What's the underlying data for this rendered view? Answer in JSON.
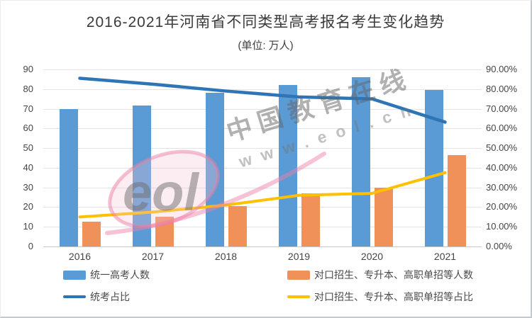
{
  "title": "2016-2021年河南省不同类型高考报名考生变化趋势",
  "subtitle": "(单位: 万人)",
  "watermark": {
    "logo_text": "eol",
    "line1": "中国教育在线",
    "line2": "www.eol.cn"
  },
  "colors": {
    "bar_blue": "#5B9BD5",
    "bar_orange": "#F0915A",
    "line_blue": "#2E75B6",
    "line_yellow": "#FFC000",
    "grid": "#E3E3E3",
    "axis_text": "#454545"
  },
  "chart_data": {
    "type": "bar",
    "subtype": "combo-bar-line-dual-axis",
    "categories": [
      "2016",
      "2017",
      "2018",
      "2019",
      "2020",
      "2021"
    ],
    "left_axis": {
      "min": 0,
      "max": 90,
      "ticks": [
        "0",
        "10",
        "20",
        "30",
        "40",
        "50",
        "60",
        "70",
        "80",
        "90"
      ]
    },
    "right_axis": {
      "min": 0,
      "max": 90,
      "ticks": [
        "0.00%",
        "10.00%",
        "20.00%",
        "30.00%",
        "40.00%",
        "50.00%",
        "60.00%",
        "70.00%",
        "80.00%",
        "90.00%"
      ]
    },
    "series": [
      {
        "key": "unified-count",
        "name": "统一高考人数",
        "type": "bar",
        "axis": "left",
        "color": "#5B9BD5",
        "values": [
          70,
          71.5,
          78,
          82,
          86,
          79.5
        ]
      },
      {
        "key": "vocational-count",
        "name": "对口招生、专升本、高职单招等人数",
        "type": "bar",
        "axis": "left",
        "color": "#F0915A",
        "values": [
          12.5,
          15,
          20.5,
          27,
          30,
          46.5
        ]
      },
      {
        "key": "unified-ratio",
        "name": "统考占比",
        "type": "line",
        "axis": "right",
        "color": "#2E75B6",
        "values": [
          85.5,
          82.5,
          79,
          76,
          75,
          63.2
        ]
      },
      {
        "key": "vocational-ratio",
        "name": "对口招生、专升本、高职单招等占比",
        "type": "line",
        "axis": "right",
        "color": "#FFC000",
        "values": [
          15,
          17.5,
          21,
          26,
          27,
          37.5
        ]
      }
    ],
    "grid": "horizontal",
    "legend_position": "bottom"
  }
}
